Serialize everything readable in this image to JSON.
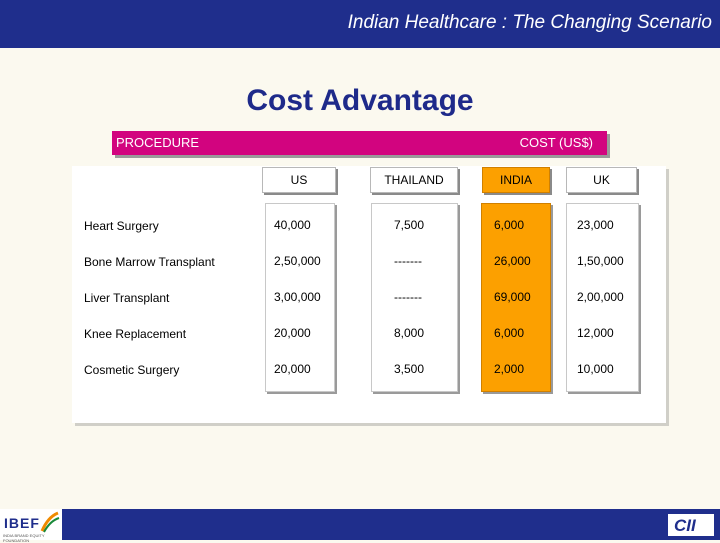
{
  "header": {
    "title": "Indian Healthcare : The Changing Scenario"
  },
  "slide": {
    "title": "Cost Advantage"
  },
  "table": {
    "procedure_label": "PROCEDURE",
    "cost_label": "COST (US$)",
    "columns": [
      "US",
      "THAILAND",
      "INDIA",
      "UK"
    ],
    "rows": [
      {
        "procedure": "Heart Surgery",
        "values": [
          "40,000",
          "7,500",
          "6,000",
          "23,000"
        ]
      },
      {
        "procedure": "Bone Marrow Transplant",
        "values": [
          "2,50,000",
          "-------",
          "26,000",
          "1,50,000"
        ]
      },
      {
        "procedure": "Liver Transplant",
        "values": [
          "3,00,000",
          "-------",
          "69,000",
          "2,00,000"
        ]
      },
      {
        "procedure": "Knee Replacement",
        "values": [
          "20,000",
          "8,000",
          "6,000",
          "12,000"
        ]
      },
      {
        "procedure": "Cosmetic Surgery",
        "values": [
          "20,000",
          "3,500",
          "2,000",
          "10,000"
        ]
      }
    ]
  },
  "footer": {
    "left_logo": "IBEF",
    "left_logo_sub": "INDIA BRAND EQUITY FOUNDATION",
    "right_logo": "CII"
  },
  "colors": {
    "brand_blue": "#1f2e8c",
    "header_magenta": "#d2047f",
    "india_highlight": "#fca000"
  }
}
